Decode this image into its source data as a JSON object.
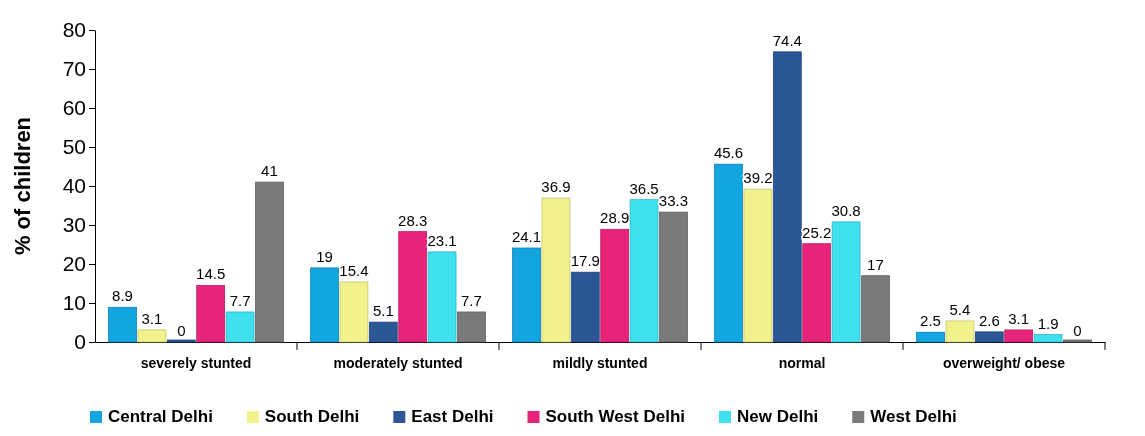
{
  "chart_data": {
    "type": "bar",
    "ylabel": "% of children",
    "categories": [
      "severely stunted",
      "moderately stunted",
      "mildly stunted",
      "normal",
      "overweight/ obese"
    ],
    "series": [
      {
        "name": "Central Delhi",
        "color": "#12a5e0",
        "values": [
          8.9,
          19,
          24.1,
          45.6,
          2.5
        ]
      },
      {
        "name": "South Delhi",
        "color": "#f2f28c",
        "values": [
          3.1,
          15.4,
          36.9,
          39.2,
          5.4
        ]
      },
      {
        "name": "East Delhi",
        "color": "#2b5796",
        "values": [
          0,
          5.1,
          17.9,
          74.4,
          2.6
        ]
      },
      {
        "name": "South West Delhi",
        "color": "#e8237a",
        "values": [
          14.5,
          28.3,
          28.9,
          25.2,
          3.1
        ]
      },
      {
        "name": "New Delhi",
        "color": "#3fe0f0",
        "values": [
          7.7,
          23.1,
          36.5,
          30.8,
          1.9
        ]
      },
      {
        "name": "West Delhi",
        "color": "#7a7a7a",
        "values": [
          41,
          7.7,
          33.3,
          17,
          0
        ]
      }
    ],
    "ylim": [
      0,
      80
    ],
    "yticks": [
      0,
      10,
      20,
      30,
      40,
      50,
      60,
      70,
      80
    ],
    "data_labels": true,
    "legend": "bottom",
    "grid": false
  }
}
